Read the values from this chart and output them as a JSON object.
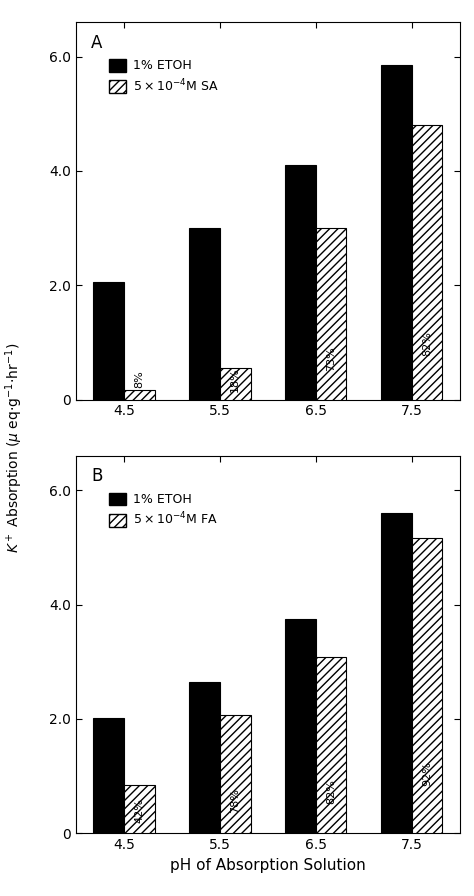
{
  "panel_A": {
    "label": "A",
    "legend_etoh": "1% ETOH",
    "legend_treatment": "$5\\times10^{-4}$M SA",
    "ph_values": [
      4.5,
      5.5,
      6.5,
      7.5
    ],
    "etoh_values": [
      2.05,
      3.0,
      4.1,
      5.85
    ],
    "treatment_values": [
      0.17,
      0.55,
      3.0,
      4.8
    ],
    "percentages": [
      "8%",
      "18%",
      "73%",
      "82%"
    ]
  },
  "panel_B": {
    "label": "B",
    "legend_etoh": "1% ETOH",
    "legend_treatment": "$5\\times10^{-4}$M FA",
    "ph_values": [
      4.5,
      5.5,
      6.5,
      7.5
    ],
    "etoh_values": [
      2.02,
      2.65,
      3.75,
      5.6
    ],
    "treatment_values": [
      0.85,
      2.07,
      3.08,
      5.17
    ],
    "percentages": [
      "42%",
      "78%",
      "82%",
      "92%"
    ]
  },
  "ylabel": "$K^+$ Absorption ($\\mu$ eq$\\cdot$g$^{-1}$$\\cdot$hr$^{-1}$)",
  "xlabel": "pH of Absorption Solution",
  "ylim": [
    0,
    6.6
  ],
  "yticks": [
    0,
    2.0,
    4.0,
    6.0
  ],
  "ytick_labels": [
    "0",
    "2.0",
    "4.0",
    "6.0"
  ],
  "bar_width": 0.32,
  "etoh_color": "black",
  "treatment_hatch": "////",
  "treatment_facecolor": "white",
  "treatment_edgecolor": "black"
}
